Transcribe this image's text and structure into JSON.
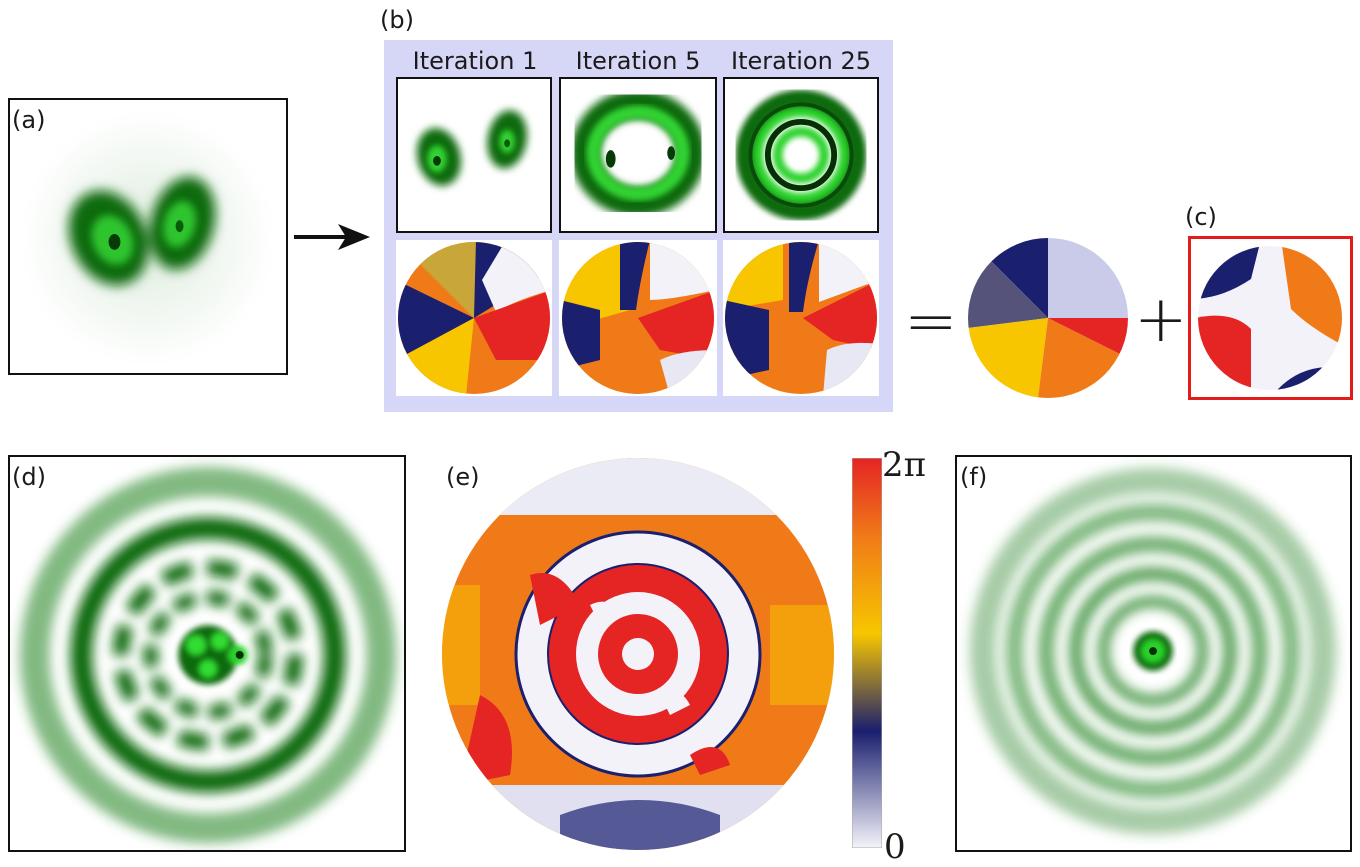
{
  "panels": {
    "a": "(a)",
    "b": "(b)",
    "c": "(c)",
    "d": "(d)",
    "e": "(e)",
    "f": "(f)"
  },
  "iterations": [
    "Iteration 1",
    "Iteration 5",
    "Iteration 25"
  ],
  "operators": {
    "equals": "=",
    "plus": "+"
  },
  "colorbar": {
    "max": "2π",
    "min": "0"
  },
  "colors": {
    "green_dark": "#0a5a0a",
    "green_bright": "#33dd33",
    "phase_navy": "#1a1f6e",
    "phase_white": "#f2f2f8",
    "phase_red": "#e52424",
    "phase_orange": "#f07a18",
    "phase_yellow": "#f7c600",
    "panel_b_bg": "#d6d6f6",
    "highlight": "#e41b1b"
  },
  "icons": [
    "arrow-right-icon"
  ]
}
